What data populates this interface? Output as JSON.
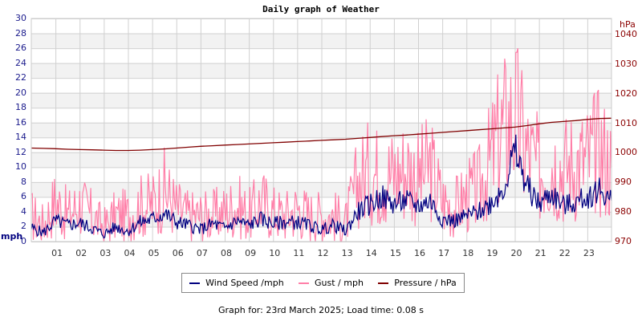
{
  "title": "Daily graph of Weather",
  "footer": "Graph for: 23rd March 2025; Load time: 0.08 s",
  "axes": {
    "left_unit": "mph",
    "right_unit": "hPa",
    "left_ticks": [
      "30",
      "28",
      "26",
      "24",
      "22",
      "20",
      "18",
      "16",
      "14",
      "12",
      "10",
      "8",
      "6",
      "4",
      "2",
      "0"
    ],
    "right_ticks": [
      "1040",
      "1030",
      "1020",
      "1010",
      "1000",
      "990",
      "980",
      "970"
    ],
    "x_ticks": [
      "01",
      "02",
      "03",
      "04",
      "05",
      "06",
      "07",
      "08",
      "09",
      "10",
      "11",
      "12",
      "13",
      "14",
      "15",
      "16",
      "17",
      "18",
      "19",
      "20",
      "21",
      "22",
      "23"
    ]
  },
  "legend": {
    "wind": "Wind Speed /mph",
    "gust": "Gust / mph",
    "pressure": "Pressure / hPa"
  },
  "colors": {
    "wind": "#000080",
    "gust": "#ff7fa8",
    "pressure": "#800000",
    "left_axis_text": "#1a1a8c",
    "right_axis_text": "#8b0000",
    "grid": "#d0d0d0",
    "band": "#f2f2f2"
  },
  "chart_data": {
    "type": "line",
    "title": "Daily graph of Weather",
    "xlabel": "Hour",
    "ylabel": "mph",
    "y2label": "hPa",
    "ylim": [
      0,
      30
    ],
    "y2lim": [
      970,
      1040
    ],
    "xlim": [
      0,
      24
    ],
    "grid": true,
    "legend_position": "bottom",
    "x_hours": [
      0,
      0.5,
      1,
      1.5,
      2,
      2.5,
      3,
      3.5,
      4,
      4.5,
      5,
      5.5,
      6,
      6.5,
      7,
      7.5,
      8,
      8.5,
      9,
      9.5,
      10,
      10.5,
      11,
      11.5,
      12,
      12.5,
      13,
      13.5,
      14,
      14.5,
      15,
      15.5,
      16,
      16.5,
      17,
      17.5,
      18,
      18.5,
      19,
      19.5,
      20,
      20.5,
      21,
      21.5,
      22,
      22.5,
      23,
      23.5,
      24
    ],
    "series": [
      {
        "name": "Wind Speed /mph",
        "axis": "left",
        "values": [
          1.8,
          1.2,
          2.8,
          2.2,
          2.5,
          1.8,
          1.0,
          2.0,
          1.4,
          2.6,
          3.0,
          3.8,
          2.6,
          2.2,
          1.6,
          2.4,
          1.8,
          2.8,
          2.2,
          3.0,
          2.4,
          2.6,
          2.6,
          2.2,
          1.6,
          2.2,
          1.4,
          4.0,
          5.0,
          6.0,
          5.0,
          5.5,
          4.8,
          5.5,
          3.0,
          2.8,
          3.4,
          4.0,
          5.2,
          7.0,
          12.0,
          7.5,
          5.0,
          6.5,
          4.8,
          5.2,
          6.0,
          7.0,
          5.5
        ]
      },
      {
        "name": "Gust / mph",
        "axis": "left",
        "values": [
          3.5,
          2.3,
          5.5,
          3.5,
          5.0,
          3.5,
          2.0,
          3.5,
          3.5,
          4.8,
          5.0,
          7.0,
          4.5,
          3.5,
          3.5,
          3.5,
          4.0,
          5.0,
          3.5,
          5.5,
          4.0,
          3.5,
          4.5,
          3.5,
          3.5,
          3.5,
          2.5,
          8.0,
          9.5,
          9.0,
          9.0,
          10.0,
          8.5,
          10.0,
          5.5,
          4.5,
          6.0,
          7.0,
          11.0,
          15.0,
          17.0,
          12.0,
          9.5,
          11.0,
          10.0,
          10.5,
          11.0,
          12.5,
          10.0
        ]
      },
      {
        "name": "Pressure / hPa",
        "axis": "right",
        "values": [
          1001.6,
          1001.5,
          1001.4,
          1001.2,
          1001.1,
          1001.0,
          1000.9,
          1000.8,
          1000.8,
          1000.9,
          1001.1,
          1001.3,
          1001.6,
          1001.9,
          1002.2,
          1002.4,
          1002.6,
          1002.8,
          1003.0,
          1003.2,
          1003.4,
          1003.6,
          1003.8,
          1004.0,
          1004.2,
          1004.4,
          1004.6,
          1004.9,
          1005.2,
          1005.5,
          1005.8,
          1006.0,
          1006.3,
          1006.6,
          1006.9,
          1007.2,
          1007.5,
          1007.8,
          1008.1,
          1008.4,
          1008.7,
          1009.2,
          1009.8,
          1010.3,
          1010.6,
          1010.9,
          1011.3,
          1011.6,
          1011.7
        ]
      }
    ]
  }
}
